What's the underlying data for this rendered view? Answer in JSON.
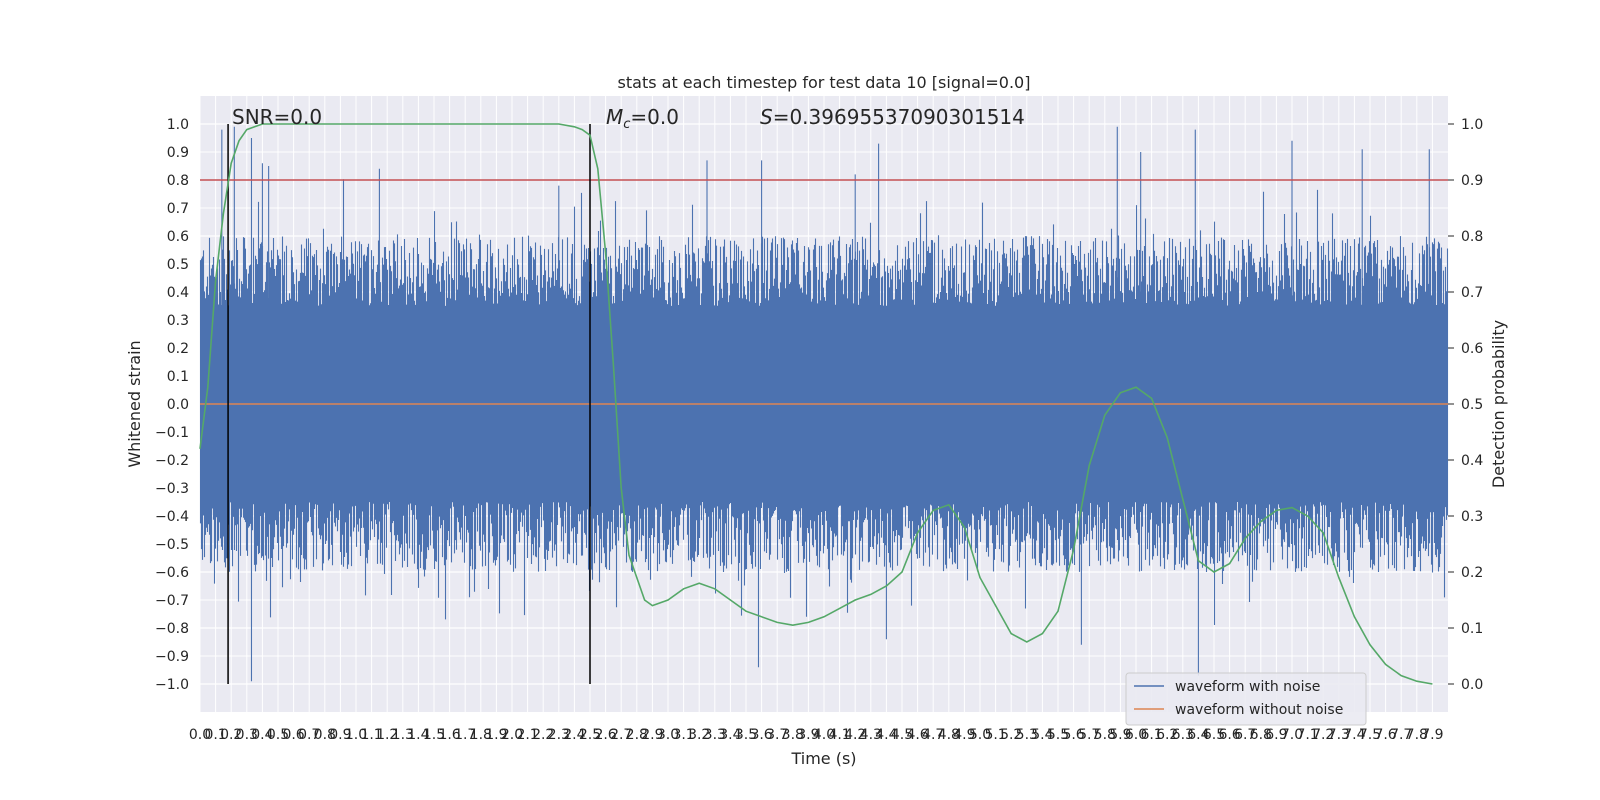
{
  "chart_data": {
    "type": "line",
    "title": "stats at each timestep for test data 10 [signal=0.0]",
    "xlabel": "Time (s)",
    "ylabel": "Whitened strain",
    "y2label": "Detection probability",
    "xlim": [
      0.0,
      8.0
    ],
    "ylim": [
      -1.1,
      1.1
    ],
    "y2lim": [
      -0.05,
      1.05
    ],
    "x_ticks": [
      0.0,
      0.1,
      0.2,
      0.3,
      0.4,
      0.5,
      0.6,
      0.7,
      0.8,
      0.9,
      1.0,
      1.1,
      1.2,
      1.3,
      1.4,
      1.5,
      1.6,
      1.7,
      1.8,
      1.9,
      2.0,
      2.1,
      2.2,
      2.3,
      2.4,
      2.5,
      2.6,
      2.7,
      2.8,
      2.9,
      3.0,
      3.1,
      3.2,
      3.3,
      3.4,
      3.5,
      3.6,
      3.7,
      3.8,
      3.9,
      4.0,
      4.1,
      4.2,
      4.3,
      4.4,
      4.5,
      4.6,
      4.7,
      4.8,
      4.9,
      5.0,
      5.1,
      5.2,
      5.3,
      5.4,
      5.5,
      5.6,
      5.7,
      5.8,
      5.9,
      6.0,
      6.1,
      6.2,
      6.3,
      6.4,
      6.5,
      6.6,
      6.7,
      6.8,
      6.9,
      7.0,
      7.1,
      7.2,
      7.3,
      7.4,
      7.5,
      7.6,
      7.7,
      7.8,
      7.9
    ],
    "y_ticks": [
      -1.0,
      -0.9,
      -0.8,
      -0.7,
      -0.6,
      -0.5,
      -0.4,
      -0.3,
      -0.2,
      -0.1,
      0.0,
      0.1,
      0.2,
      0.3,
      0.4,
      0.5,
      0.6,
      0.7,
      0.8,
      0.9,
      1.0
    ],
    "y2_ticks": [
      0.0,
      0.1,
      0.2,
      0.3,
      0.4,
      0.5,
      0.6,
      0.7,
      0.8,
      0.9,
      1.0
    ],
    "grid": true,
    "legend_position": "bottom-right",
    "annotations": {
      "snr": "SNR=0.0",
      "mc_symbol": "M",
      "mc_subscript": "c",
      "mc_value": "=0.0",
      "s_symbol": "S",
      "s_value": "=0.39695537090301514"
    },
    "series": [
      {
        "name": "waveform with noise",
        "color": "#4c72b0",
        "axis": "left",
        "kind": "dense noise, roughly symmetric about 0, typical amplitude about ±0.55 with peaks near ±1.0",
        "peaks": [
          {
            "x": 0.14,
            "y": 0.98
          },
          {
            "x": 0.22,
            "y": 0.99
          },
          {
            "x": 0.33,
            "y": 0.95
          },
          {
            "x": 0.4,
            "y": 0.86
          },
          {
            "x": 0.44,
            "y": 0.85
          },
          {
            "x": 0.33,
            "y": -0.99
          },
          {
            "x": 1.15,
            "y": 0.84
          },
          {
            "x": 2.3,
            "y": 0.78
          },
          {
            "x": 3.25,
            "y": 0.87
          },
          {
            "x": 3.58,
            "y": -0.94
          },
          {
            "x": 3.6,
            "y": 0.87
          },
          {
            "x": 4.2,
            "y": 0.82
          },
          {
            "x": 4.35,
            "y": 0.93
          },
          {
            "x": 4.4,
            "y": -0.84
          },
          {
            "x": 5.65,
            "y": -0.86
          },
          {
            "x": 5.88,
            "y": 0.99
          },
          {
            "x": 6.03,
            "y": 0.9
          },
          {
            "x": 6.38,
            "y": 0.98
          },
          {
            "x": 6.4,
            "y": -0.97
          },
          {
            "x": 7.0,
            "y": 0.94
          },
          {
            "x": 7.45,
            "y": 0.91
          },
          {
            "x": 7.88,
            "y": 0.91
          }
        ]
      },
      {
        "name": "waveform without noise",
        "color": "#dd8452",
        "axis": "left",
        "x": [
          0.0,
          8.0
        ],
        "y": [
          0.0,
          0.0
        ]
      },
      {
        "color": "#55a868",
        "axis": "right",
        "x": [
          0.0,
          0.05,
          0.1,
          0.15,
          0.2,
          0.25,
          0.3,
          0.35,
          0.4,
          0.5,
          0.6,
          0.8,
          1.0,
          1.5,
          2.0,
          2.2,
          2.3,
          2.4,
          2.45,
          2.5,
          2.55,
          2.6,
          2.65,
          2.7,
          2.75,
          2.8,
          2.85,
          2.9,
          3.0,
          3.1,
          3.2,
          3.3,
          3.4,
          3.5,
          3.6,
          3.7,
          3.8,
          3.9,
          4.0,
          4.1,
          4.2,
          4.3,
          4.4,
          4.5,
          4.6,
          4.7,
          4.8,
          4.9,
          5.0,
          5.1,
          5.2,
          5.3,
          5.4,
          5.5,
          5.6,
          5.7,
          5.8,
          5.9,
          6.0,
          6.1,
          6.2,
          6.3,
          6.4,
          6.5,
          6.6,
          6.7,
          6.8,
          6.9,
          7.0,
          7.1,
          7.2,
          7.3,
          7.4,
          7.5,
          7.6,
          7.7,
          7.8,
          7.9
        ],
        "y": [
          0.42,
          0.53,
          0.72,
          0.84,
          0.93,
          0.97,
          0.99,
          0.995,
          1.0,
          1.0,
          1.0,
          1.0,
          1.0,
          1.0,
          1.0,
          1.0,
          1.0,
          0.995,
          0.99,
          0.98,
          0.92,
          0.77,
          0.57,
          0.35,
          0.23,
          0.19,
          0.15,
          0.14,
          0.15,
          0.17,
          0.18,
          0.17,
          0.15,
          0.13,
          0.12,
          0.11,
          0.105,
          0.11,
          0.12,
          0.135,
          0.15,
          0.16,
          0.175,
          0.2,
          0.27,
          0.31,
          0.32,
          0.28,
          0.19,
          0.14,
          0.09,
          0.075,
          0.09,
          0.13,
          0.24,
          0.39,
          0.48,
          0.52,
          0.53,
          0.51,
          0.44,
          0.33,
          0.22,
          0.2,
          0.215,
          0.26,
          0.29,
          0.31,
          0.315,
          0.3,
          0.27,
          0.19,
          0.12,
          0.07,
          0.035,
          0.015,
          0.005,
          0.0
        ]
      },
      {
        "color": "#c44e52",
        "axis": "right",
        "x": [
          0.0,
          8.0
        ],
        "y": [
          0.9,
          0.9
        ]
      }
    ],
    "vertical_lines": [
      {
        "x": 0.18,
        "y": [
          -1.0,
          1.0
        ],
        "color": "#000000"
      },
      {
        "x": 2.5,
        "y": [
          -1.0,
          1.0
        ],
        "color": "#000000"
      }
    ]
  }
}
